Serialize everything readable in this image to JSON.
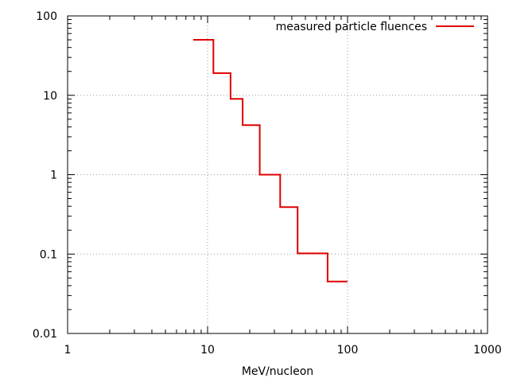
{
  "chart_data": {
    "type": "line",
    "style": "step",
    "title": "",
    "xlabel": "MeV/nucleon",
    "ylabel": "",
    "xscale": "log",
    "yscale": "log",
    "xlim": [
      1,
      1000
    ],
    "ylim": [
      0.01,
      100
    ],
    "x_ticks": [
      "1",
      "10",
      "100",
      "1000"
    ],
    "y_ticks": [
      "0.01",
      "0.1",
      "1",
      "10",
      "100"
    ],
    "grid": true,
    "legend_position": "top-right",
    "series": [
      {
        "name": "measured particle fluences",
        "color": "#e00000",
        "bin_edges": [
          7.9,
          11,
          14.6,
          17.8,
          23.6,
          33,
          44,
          72,
          100
        ],
        "values": [
          50,
          19,
          9,
          4.2,
          1.0,
          0.39,
          0.102,
          0.045
        ]
      }
    ]
  }
}
